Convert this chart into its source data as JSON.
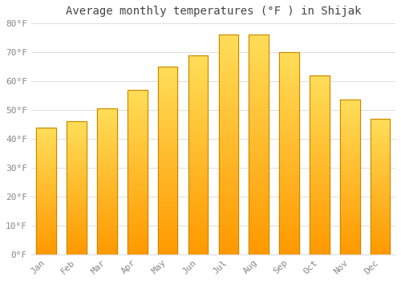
{
  "title": "Average monthly temperatures (°F ) in Shijak",
  "months": [
    "Jan",
    "Feb",
    "Mar",
    "Apr",
    "May",
    "Jun",
    "Jul",
    "Aug",
    "Sep",
    "Oct",
    "Nov",
    "Dec"
  ],
  "values": [
    44,
    46,
    50.5,
    57,
    65,
    69,
    76,
    76,
    70,
    62,
    53.5,
    47
  ],
  "bar_color_top": "#FFCC44",
  "bar_color_bottom": "#FF9900",
  "bar_edge_color": "#CC8800",
  "background_color": "#FFFFFF",
  "plot_bg_color": "#FFFFFF",
  "ylim": [
    0,
    80
  ],
  "yticks": [
    0,
    10,
    20,
    30,
    40,
    50,
    60,
    70,
    80
  ],
  "ytick_labels": [
    "0°F",
    "10°F",
    "20°F",
    "30°F",
    "40°F",
    "50°F",
    "60°F",
    "70°F",
    "80°F"
  ],
  "title_fontsize": 10,
  "tick_fontsize": 8,
  "tick_color": "#888888",
  "grid_color": "#dddddd",
  "grid_alpha": 1.0,
  "bar_width": 0.65
}
